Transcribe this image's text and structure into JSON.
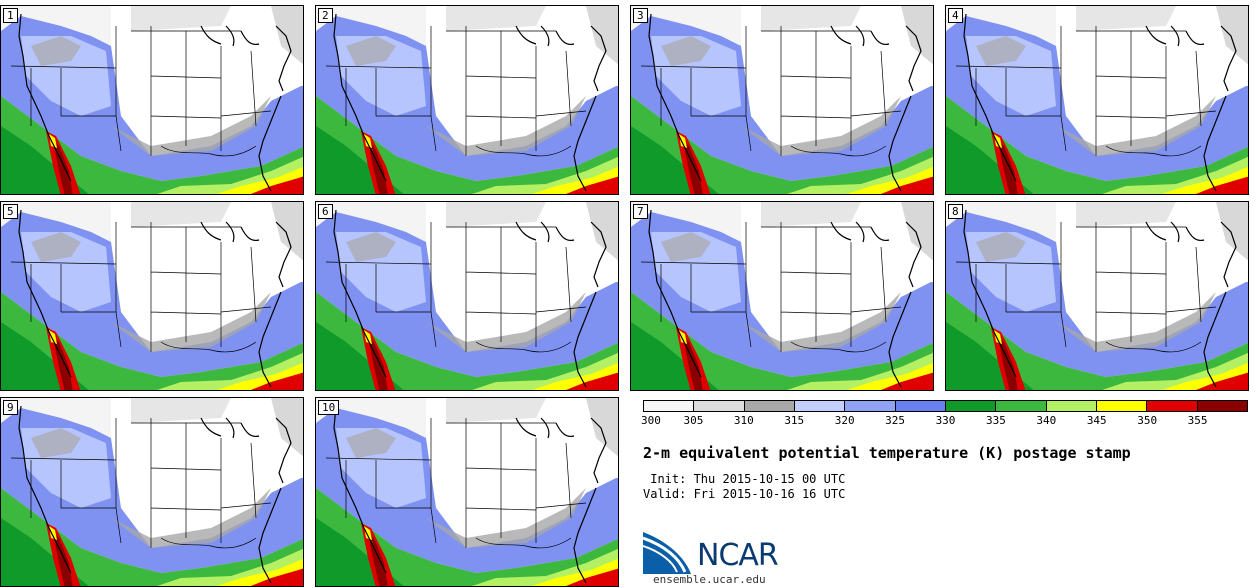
{
  "panels": [
    {
      "label": "1"
    },
    {
      "label": "2"
    },
    {
      "label": "3"
    },
    {
      "label": "4"
    },
    {
      "label": "5"
    },
    {
      "label": "6"
    },
    {
      "label": "7"
    },
    {
      "label": "8"
    },
    {
      "label": "9"
    },
    {
      "label": "10"
    }
  ],
  "colorbar": {
    "colors": [
      "#f6f6f6",
      "#dcdcdc",
      "#a8a8a8",
      "#c2cfff",
      "#8fa2f5",
      "#6a7ff0",
      "#0f9a2a",
      "#3cb83e",
      "#b4f064",
      "#ffff00",
      "#e00000",
      "#8a0000"
    ],
    "ticks": [
      "300",
      "305",
      "310",
      "315",
      "320",
      "325",
      "330",
      "335",
      "340",
      "345",
      "350",
      "355"
    ]
  },
  "title": "2-m equivalent potential temperature (K) postage stamp",
  "init_line": " Init: Thu 2015-10-15 00 UTC",
  "valid_line": "Valid: Fri 2015-10-16 16 UTC",
  "logo": {
    "text": "NCAR",
    "url": "ensemble.ucar.edu",
    "color": "#0a5fa8"
  }
}
